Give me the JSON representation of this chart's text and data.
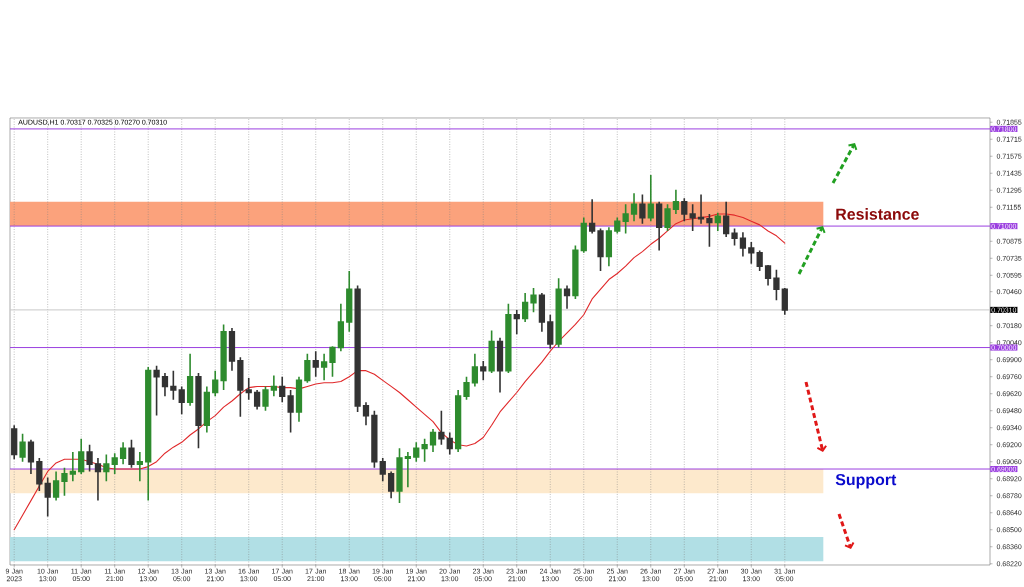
{
  "chart_data": {
    "type": "candlestick",
    "title": "AUDUSD,H1 0.70317 0.70325 0.70270 0.70310",
    "categories": [
      "9 Jan 2023",
      null,
      null,
      null,
      "10 Jan 13:00",
      null,
      null,
      null,
      "11 Jan 05:00",
      null,
      null,
      null,
      "11 Jan 21:00",
      null,
      null,
      null,
      "12 Jan 13:00",
      null,
      null,
      null,
      "13 Jan 05:00",
      null,
      null,
      null,
      "13 Jan 21:00",
      null,
      null,
      null,
      "16 Jan 13:00",
      null,
      null,
      null,
      "17 Jan 05:00",
      null,
      null,
      null,
      "17 Jan 21:00",
      null,
      null,
      null,
      "18 Jan 13:00",
      null,
      null,
      null,
      "19 Jan 05:00",
      null,
      null,
      null,
      "19 Jan 21:00",
      null,
      null,
      null,
      "20 Jan 13:00",
      null,
      null,
      null,
      "23 Jan 05:00",
      null,
      null,
      null,
      "23 Jan 21:00",
      null,
      null,
      null,
      "24 Jan 13:00",
      null,
      null,
      null,
      "25 Jan 05:00",
      null,
      null,
      null,
      "25 Jan 21:00",
      null,
      null,
      null,
      "26 Jan 13:00",
      null,
      null,
      null,
      "27 Jan 05:00",
      null,
      null,
      null,
      "27 Jan 21:00",
      null,
      null,
      null,
      "30 Jan 13:00",
      null,
      null,
      null,
      "31 Jan 05:00"
    ],
    "ohlc": [
      [
        0.6933,
        0.6936,
        0.6908,
        0.6912
      ],
      [
        0.691,
        0.6929,
        0.6906,
        0.6922
      ],
      [
        0.6922,
        0.6924,
        0.6896,
        0.6906
      ],
      [
        0.6906,
        0.6909,
        0.6882,
        0.6888
      ],
      [
        0.6888,
        0.6893,
        0.6861,
        0.6877
      ],
      [
        0.6877,
        0.6898,
        0.6874,
        0.689
      ],
      [
        0.689,
        0.6901,
        0.6878,
        0.6896
      ],
      [
        0.6896,
        0.6914,
        0.689,
        0.6898
      ],
      [
        0.6898,
        0.6925,
        0.6896,
        0.6914
      ],
      [
        0.6914,
        0.692,
        0.6898,
        0.6904
      ],
      [
        0.6904,
        0.6909,
        0.6874,
        0.6898
      ],
      [
        0.6898,
        0.6912,
        0.689,
        0.6904
      ],
      [
        0.6904,
        0.6913,
        0.6896,
        0.6909
      ],
      [
        0.6909,
        0.6922,
        0.6904,
        0.6917
      ],
      [
        0.6917,
        0.6924,
        0.6901,
        0.6904
      ],
      [
        0.6904,
        0.6914,
        0.689,
        0.6906
      ],
      [
        0.6906,
        0.6984,
        0.6874,
        0.6981
      ],
      [
        0.6981,
        0.6985,
        0.6944,
        0.6976
      ],
      [
        0.6976,
        0.6979,
        0.696,
        0.6968
      ],
      [
        0.6968,
        0.6981,
        0.6957,
        0.6965
      ],
      [
        0.6965,
        0.6968,
        0.6945,
        0.6955
      ],
      [
        0.6955,
        0.6995,
        0.6952,
        0.6976
      ],
      [
        0.6976,
        0.6979,
        0.6917,
        0.6936
      ],
      [
        0.6936,
        0.6968,
        0.693,
        0.6963
      ],
      [
        0.6963,
        0.6981,
        0.696,
        0.6973
      ],
      [
        0.6973,
        0.7019,
        0.6965,
        0.7013
      ],
      [
        0.7013,
        0.7016,
        0.6981,
        0.6989
      ],
      [
        0.6989,
        0.6992,
        0.6943,
        0.6965
      ],
      [
        0.6965,
        0.6975,
        0.6957,
        0.6963
      ],
      [
        0.6963,
        0.6965,
        0.6949,
        0.6952
      ],
      [
        0.6952,
        0.6968,
        0.6948,
        0.6965
      ],
      [
        0.6965,
        0.6977,
        0.696,
        0.6968
      ],
      [
        0.6968,
        0.6976,
        0.6955,
        0.696
      ],
      [
        0.696,
        0.6965,
        0.693,
        0.6947
      ],
      [
        0.6947,
        0.6976,
        0.6939,
        0.6973
      ],
      [
        0.6973,
        0.6995,
        0.6971,
        0.6989
      ],
      [
        0.6989,
        0.6997,
        0.6976,
        0.6984
      ],
      [
        0.6984,
        0.6995,
        0.6973,
        0.6988
      ],
      [
        0.6988,
        0.7001,
        0.6976,
        0.7
      ],
      [
        0.7,
        0.7036,
        0.6997,
        0.7021
      ],
      [
        0.7021,
        0.7063,
        0.7013,
        0.7048
      ],
      [
        0.7048,
        0.7051,
        0.6947,
        0.6952
      ],
      [
        0.6952,
        0.6955,
        0.6936,
        0.6944
      ],
      [
        0.6944,
        0.6948,
        0.6901,
        0.6906
      ],
      [
        0.6906,
        0.6909,
        0.689,
        0.6896
      ],
      [
        0.6896,
        0.6898,
        0.6876,
        0.6882
      ],
      [
        0.6882,
        0.6917,
        0.6872,
        0.6909
      ],
      [
        0.6909,
        0.6914,
        0.6885,
        0.691
      ],
      [
        0.691,
        0.6922,
        0.6906,
        0.6917
      ],
      [
        0.6917,
        0.6925,
        0.6906,
        0.692
      ],
      [
        0.692,
        0.6933,
        0.6914,
        0.693
      ],
      [
        0.693,
        0.6948,
        0.692,
        0.6925
      ],
      [
        0.6925,
        0.693,
        0.6912,
        0.6917
      ],
      [
        0.6917,
        0.6965,
        0.6914,
        0.696
      ],
      [
        0.696,
        0.6976,
        0.6957,
        0.6971
      ],
      [
        0.6971,
        0.6995,
        0.6968,
        0.6984
      ],
      [
        0.6984,
        0.6989,
        0.6973,
        0.6981
      ],
      [
        0.6981,
        0.7014,
        0.6979,
        0.7005
      ],
      [
        0.7005,
        0.7008,
        0.6963,
        0.6981
      ],
      [
        0.6981,
        0.7036,
        0.6979,
        0.7027
      ],
      [
        0.7027,
        0.7031,
        0.7011,
        0.7024
      ],
      [
        0.7024,
        0.7045,
        0.7021,
        0.7037
      ],
      [
        0.7037,
        0.7049,
        0.7029,
        0.7043
      ],
      [
        0.7043,
        0.7045,
        0.7013,
        0.7021
      ],
      [
        0.7021,
        0.7027,
        0.6999,
        0.7003
      ],
      [
        0.7003,
        0.7057,
        0.7,
        0.7048
      ],
      [
        0.7048,
        0.7051,
        0.7032,
        0.7043
      ],
      [
        0.7043,
        0.7084,
        0.704,
        0.708
      ],
      [
        0.708,
        0.7107,
        0.7078,
        0.7102
      ],
      [
        0.7102,
        0.7122,
        0.7094,
        0.7096
      ],
      [
        0.7096,
        0.7098,
        0.7063,
        0.7075
      ],
      [
        0.7075,
        0.7099,
        0.7067,
        0.7096
      ],
      [
        0.7096,
        0.7107,
        0.7094,
        0.7104
      ],
      [
        0.7104,
        0.7118,
        0.7094,
        0.711
      ],
      [
        0.711,
        0.7127,
        0.7104,
        0.7118
      ],
      [
        0.7118,
        0.7126,
        0.7102,
        0.7107
      ],
      [
        0.7107,
        0.7142,
        0.7104,
        0.7118
      ],
      [
        0.7118,
        0.712,
        0.708,
        0.7099
      ],
      [
        0.7099,
        0.7118,
        0.7096,
        0.7114
      ],
      [
        0.7114,
        0.713,
        0.711,
        0.712
      ],
      [
        0.712,
        0.7123,
        0.7104,
        0.711
      ],
      [
        0.711,
        0.7118,
        0.7096,
        0.7107
      ],
      [
        0.7107,
        0.7126,
        0.7102,
        0.7106
      ],
      [
        0.7106,
        0.711,
        0.7083,
        0.7103
      ],
      [
        0.7103,
        0.7111,
        0.7096,
        0.7108
      ],
      [
        0.7108,
        0.712,
        0.7091,
        0.7094
      ],
      [
        0.7094,
        0.7098,
        0.7084,
        0.709
      ],
      [
        0.709,
        0.7095,
        0.7075,
        0.7082
      ],
      [
        0.7082,
        0.7087,
        0.7069,
        0.7078
      ],
      [
        0.7078,
        0.708,
        0.7063,
        0.7067
      ],
      [
        0.7067,
        0.7068,
        0.7051,
        0.7057
      ],
      [
        0.7057,
        0.7064,
        0.7039,
        0.7048
      ],
      [
        0.7048,
        0.7049,
        0.7027,
        0.7031
      ]
    ],
    "colors": [
      "#333333",
      "#2e8b2e",
      "#333333",
      "#333333",
      "#333333",
      "#2e8b2e",
      "#2e8b2e",
      "#2e8b2e",
      "#2e8b2e",
      "#333333",
      "#333333",
      "#2e8b2e",
      "#2e8b2e",
      "#2e8b2e",
      "#333333",
      "#2e8b2e",
      "#2e8b2e",
      "#333333",
      "#333333",
      "#333333",
      "#333333",
      "#2e8b2e",
      "#333333",
      "#2e8b2e",
      "#2e8b2e",
      "#2e8b2e",
      "#333333",
      "#333333",
      "#333333",
      "#333333",
      "#2e8b2e",
      "#2e8b2e",
      "#333333",
      "#333333",
      "#2e8b2e",
      "#2e8b2e",
      "#333333",
      "#2e8b2e",
      "#2e8b2e",
      "#2e8b2e",
      "#2e8b2e",
      "#333333",
      "#333333",
      "#333333",
      "#333333",
      "#333333",
      "#2e8b2e",
      "#2e8b2e",
      "#2e8b2e",
      "#2e8b2e",
      "#2e8b2e",
      "#333333",
      "#333333",
      "#2e8b2e",
      "#2e8b2e",
      "#2e8b2e",
      "#333333",
      "#2e8b2e",
      "#333333",
      "#2e8b2e",
      "#333333",
      "#2e8b2e",
      "#2e8b2e",
      "#333333",
      "#333333",
      "#2e8b2e",
      "#333333",
      "#2e8b2e",
      "#2e8b2e",
      "#333333",
      "#333333",
      "#2e8b2e",
      "#2e8b2e",
      "#2e8b2e",
      "#2e8b2e",
      "#333333",
      "#2e8b2e",
      "#333333",
      "#2e8b2e",
      "#2e8b2e",
      "#333333",
      "#333333",
      "#333333",
      "#333333",
      "#2e8b2e",
      "#333333",
      "#333333",
      "#333333",
      "#333333",
      "#333333",
      "#333333",
      "#333333",
      "#333333"
    ],
    "series": [
      {
        "type": "line",
        "color": "#e0282a",
        "values": [
          0.685,
          0.6862,
          0.6874,
          0.6886,
          0.6898,
          0.6905,
          0.6908,
          0.6908,
          0.6908,
          0.6906,
          0.6904,
          0.6901,
          0.69,
          0.69,
          0.69,
          0.69,
          0.6902,
          0.6906,
          0.6913,
          0.6918,
          0.6922,
          0.6928,
          0.6933,
          0.6939,
          0.6944,
          0.6951,
          0.6956,
          0.6962,
          0.6967,
          0.6968,
          0.6968,
          0.6968,
          0.6967,
          0.6967,
          0.6966,
          0.6968,
          0.697,
          0.6971,
          0.6971,
          0.6972,
          0.6976,
          0.6981,
          0.6981,
          0.6978,
          0.6973,
          0.6968,
          0.6963,
          0.6957,
          0.6951,
          0.6945,
          0.6939,
          0.693,
          0.6924,
          0.692,
          0.6919,
          0.6921,
          0.6926,
          0.6936,
          0.6947,
          0.6955,
          0.6963,
          0.6972,
          0.698,
          0.6988,
          0.6997,
          0.7005,
          0.7012,
          0.7019,
          0.7027,
          0.704,
          0.7048,
          0.7056,
          0.7061,
          0.7067,
          0.7074,
          0.7079,
          0.7085,
          0.709,
          0.7096,
          0.7102,
          0.7105,
          0.7106,
          0.7107,
          0.7108,
          0.711,
          0.711,
          0.7109,
          0.7107,
          0.7104,
          0.7101,
          0.7096,
          0.7092,
          0.7086
        ]
      }
    ],
    "ylim": [
      0.6821,
      0.7189
    ],
    "yticks": [
      0.71855,
      0.71715,
      0.71575,
      0.71435,
      0.71295,
      0.71155,
      0.70875,
      0.70735,
      0.70595,
      {
        "value": 0.7046,
        "label": "0.70460"
      },
      {
        "value": 0.7018,
        "label": "0.70180"
      },
      {
        "value": 0.7004,
        "label": "0.70040"
      },
      {
        "value": 0.699,
        "label": "0.69900"
      },
      {
        "value": 0.6976,
        "label": "0.69760"
      },
      {
        "value": 0.6962,
        "label": "0.69620"
      },
      {
        "value": 0.6948,
        "label": "0.69480"
      },
      {
        "value": 0.6934,
        "label": "0.69340"
      },
      {
        "value": 0.692,
        "label": "0.69200"
      },
      {
        "value": 0.6906,
        "label": "0.69060"
      },
      {
        "value": 0.6892,
        "label": "0.68920"
      },
      {
        "value": 0.6878,
        "label": "0.68780"
      },
      {
        "value": 0.6864,
        "label": "0.68640"
      },
      {
        "value": 0.685,
        "label": "0.68500"
      },
      {
        "value": 0.6836,
        "label": "0.68360"
      },
      {
        "value": 0.6822,
        "label": "0.68220"
      }
    ],
    "grid": "x",
    "ref_lines": [
      {
        "axis": "y",
        "value": 0.718,
        "label": "0.71800",
        "color": "#9b3fe0"
      },
      {
        "axis": "y",
        "value": 0.71,
        "label": "0.71000",
        "color": "#9b3fe0"
      },
      {
        "axis": "y",
        "value": 0.7031,
        "label": "0.70310",
        "color": "#c8c8c8"
      },
      {
        "axis": "y",
        "value": 0.7,
        "label": "0.70000",
        "color": "#9b3fe0"
      },
      {
        "axis": "y",
        "value": 0.69,
        "label": "0.69000",
        "color": "#9b3fe0"
      }
    ],
    "bands": [
      {
        "axis": "y",
        "from": 0.71,
        "to": 0.712,
        "label": "Resistance",
        "color": "#fba27c"
      },
      {
        "axis": "y",
        "from": 0.688,
        "to": 0.69,
        "label": "Support",
        "color": "#fde9cc"
      },
      {
        "axis": "y",
        "from": 0.6824,
        "to": 0.6844,
        "color": "#b1dfe5"
      }
    ]
  }
}
